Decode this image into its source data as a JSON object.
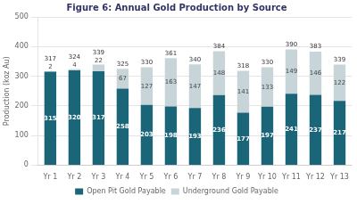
{
  "chart_data": {
    "type": "bar",
    "stacked": true,
    "title": "Figure 6: Annual Gold Production by Source",
    "ylabel": "Production (koz Au)",
    "categories": [
      "Yr 1",
      "Yr 2",
      "Yr 3",
      "Yr 4",
      "Yr 5",
      "Yr 6",
      "Yr 7",
      "Yr 8",
      "Yr 9",
      "Yr 10",
      "Yr 11",
      "Yr 12",
      "Yr 13"
    ],
    "series": [
      {
        "name": "Open Pit Gold Payable",
        "color": "#1b6579",
        "values": [
          315,
          320,
          317,
          258,
          203,
          198,
          193,
          236,
          177,
          197,
          241,
          237,
          217
        ]
      },
      {
        "name": "Underground Gold Payable",
        "color": "#c8d5d8",
        "values": [
          2,
          4,
          22,
          67,
          127,
          163,
          147,
          148,
          141,
          133,
          149,
          146,
          122
        ]
      }
    ],
    "totals": [
      317,
      324,
      339,
      325,
      330,
      361,
      340,
      384,
      318,
      330,
      390,
      383,
      339
    ],
    "ylim": [
      0,
      500
    ],
    "yticks": [
      0,
      100,
      200,
      300,
      400,
      500
    ],
    "grid": true,
    "legend": "bottom",
    "data_labels": true
  }
}
